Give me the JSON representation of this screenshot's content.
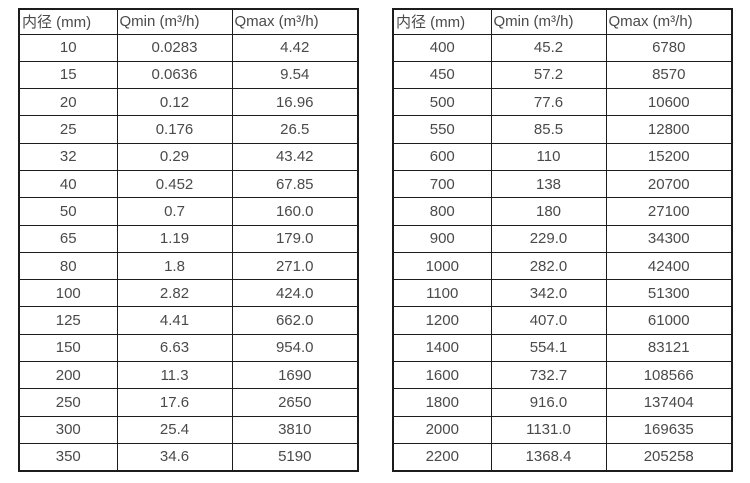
{
  "colors": {
    "background": "#ffffff",
    "table_background": "#ffffff",
    "border": "#1c1c1c",
    "text": "#4a4a4a"
  },
  "tables": [
    {
      "id": "flow-range-table-small-diameters",
      "headers": [
        "内径 (mm)",
        "Qmin (m³/h)",
        "Qmax (m³/h)"
      ],
      "rows": [
        [
          "10",
          "0.0283",
          "4.42"
        ],
        [
          "15",
          "0.0636",
          "9.54"
        ],
        [
          "20",
          "0.12",
          "16.96"
        ],
        [
          "25",
          "0.176",
          "26.5"
        ],
        [
          "32",
          "0.29",
          "43.42"
        ],
        [
          "40",
          "0.452",
          "67.85"
        ],
        [
          "50",
          "0.7",
          "160.0"
        ],
        [
          "65",
          "1.19",
          "179.0"
        ],
        [
          "80",
          "1.8",
          "271.0"
        ],
        [
          "100",
          "2.82",
          "424.0"
        ],
        [
          "125",
          "4.41",
          "662.0"
        ],
        [
          "150",
          "6.63",
          "954.0"
        ],
        [
          "200",
          "11.3",
          "1690"
        ],
        [
          "250",
          "17.6",
          "2650"
        ],
        [
          "300",
          "25.4",
          "3810"
        ],
        [
          "350",
          "34.6",
          "5190"
        ]
      ]
    },
    {
      "id": "flow-range-table-large-diameters",
      "headers": [
        "内径 (mm)",
        "Qmin (m³/h)",
        "Qmax (m³/h)"
      ],
      "rows": [
        [
          "400",
          "45.2",
          "6780"
        ],
        [
          "450",
          "57.2",
          "8570"
        ],
        [
          "500",
          "77.6",
          "10600"
        ],
        [
          "550",
          "85.5",
          "12800"
        ],
        [
          "600",
          "110",
          "15200"
        ],
        [
          "700",
          "138",
          "20700"
        ],
        [
          "800",
          "180",
          "27100"
        ],
        [
          "900",
          "229.0",
          "34300"
        ],
        [
          "1000",
          "282.0",
          "42400"
        ],
        [
          "1100",
          "342.0",
          "51300"
        ],
        [
          "1200",
          "407.0",
          "61000"
        ],
        [
          "1400",
          "554.1",
          "83121"
        ],
        [
          "1600",
          "732.7",
          "108566"
        ],
        [
          "1800",
          "916.0",
          "137404"
        ],
        [
          "2000",
          "1131.0",
          "169635"
        ],
        [
          "2200",
          "1368.4",
          "205258"
        ]
      ]
    }
  ]
}
